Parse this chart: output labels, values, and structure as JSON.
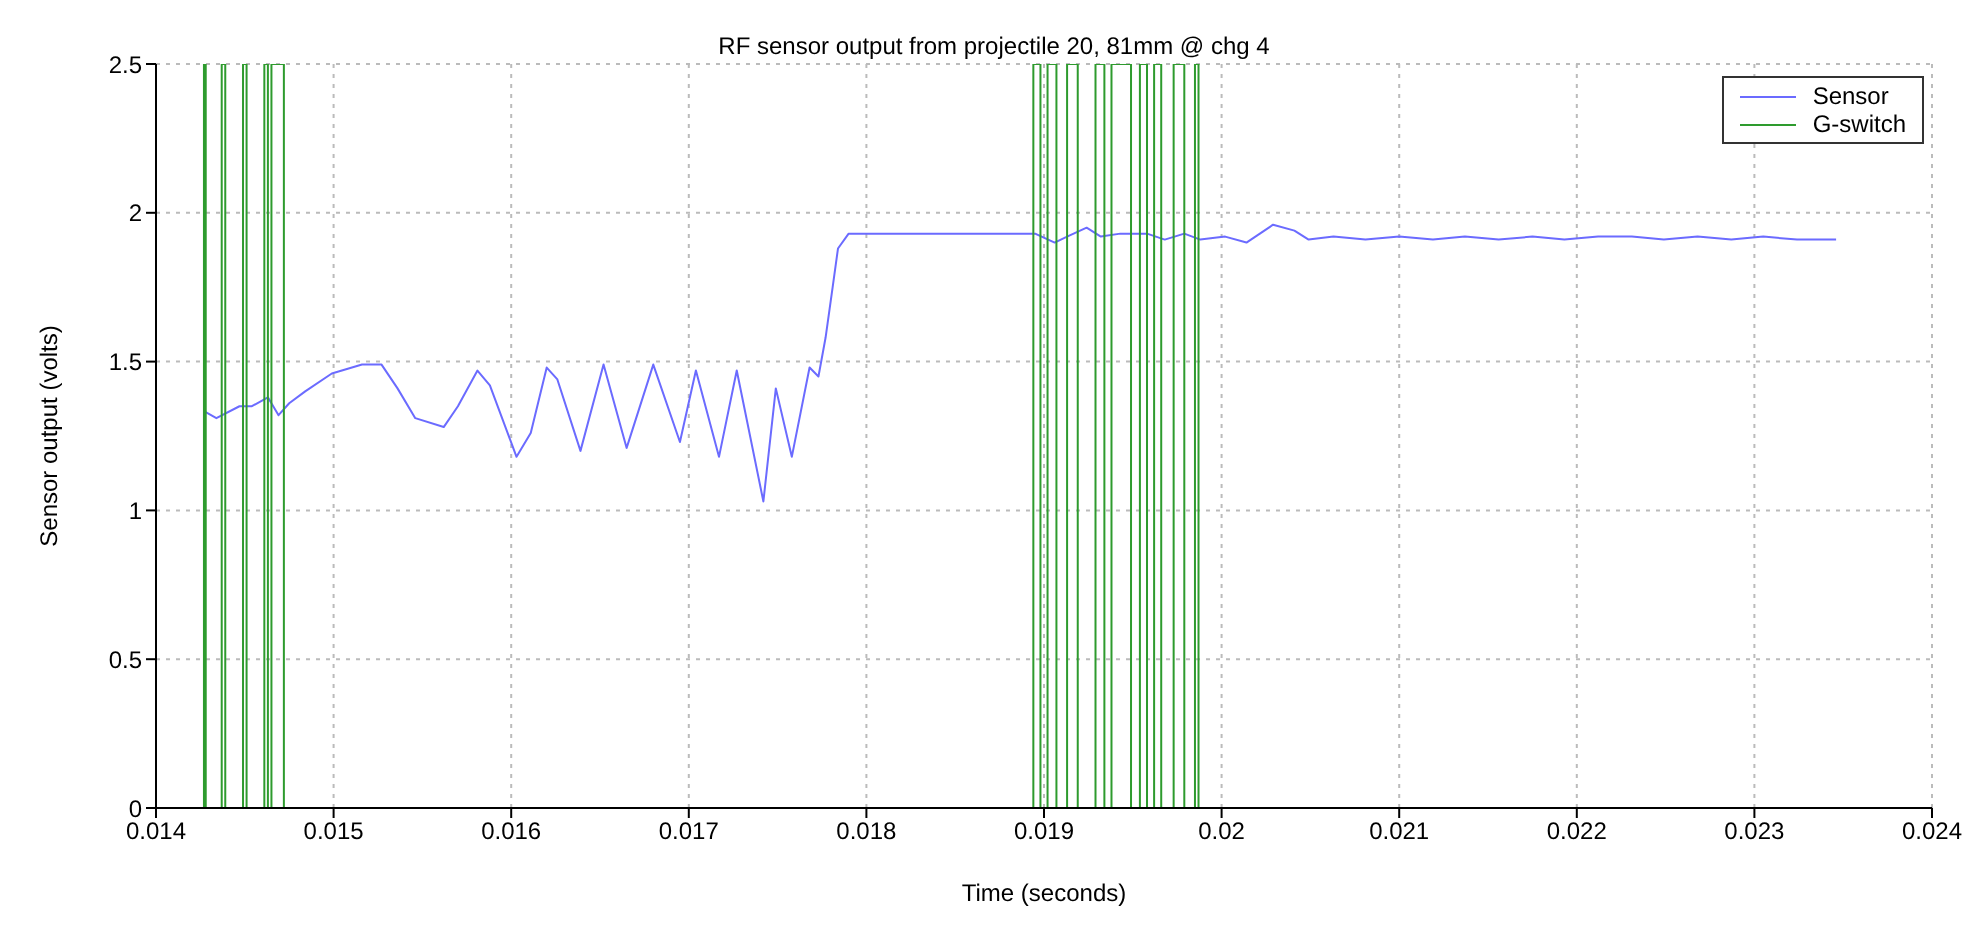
{
  "chart_data": {
    "type": "line",
    "title": "RF sensor output from projectile 20, 81mm @ chg 4",
    "xlabel": "Time (seconds)",
    "ylabel": "Sensor output (volts)",
    "xlim": [
      0.014,
      0.024
    ],
    "xticks": [
      0.014,
      0.015,
      0.016,
      0.017,
      0.018,
      0.019,
      0.02,
      0.021,
      0.022,
      0.023,
      0.024
    ],
    "ylim": [
      0,
      2.5
    ],
    "yticks": [
      0,
      0.5,
      1,
      1.5,
      2,
      2.5
    ],
    "grid": true,
    "legend": "top right",
    "marker": "none",
    "line_style": "solid",
    "series": [
      {
        "name": "Sensor",
        "color": "#6b6bff",
        "x": [
          0.01428,
          0.01434,
          0.01447,
          0.01454,
          0.01463,
          0.01469,
          0.01475,
          0.01484,
          0.01499,
          0.01516,
          0.01527,
          0.01536,
          0.01546,
          0.01562,
          0.0157,
          0.01581,
          0.01588,
          0.01603,
          0.01611,
          0.0162,
          0.01626,
          0.01639,
          0.01652,
          0.01665,
          0.0168,
          0.01695,
          0.01704,
          0.01717,
          0.01727,
          0.01742,
          0.01749,
          0.01758,
          0.01768,
          0.01773,
          0.01777,
          0.01781,
          0.01784,
          0.0179,
          0.01895,
          0.01906,
          0.01913,
          0.01924,
          0.01932,
          0.01943,
          0.01958,
          0.01968,
          0.01979,
          0.01988,
          0.02002,
          0.02014,
          0.02029,
          0.02041,
          0.02049,
          0.02063,
          0.02081,
          0.021,
          0.02119,
          0.02137,
          0.02156,
          0.02175,
          0.02193,
          0.02212,
          0.02231,
          0.02249,
          0.02268,
          0.02287,
          0.02305,
          0.02324,
          0.02346
        ],
        "values": [
          1.33,
          1.31,
          1.35,
          1.35,
          1.38,
          1.32,
          1.36,
          1.4,
          1.46,
          1.49,
          1.49,
          1.41,
          1.31,
          1.28,
          1.35,
          1.47,
          1.42,
          1.18,
          1.26,
          1.48,
          1.44,
          1.2,
          1.49,
          1.21,
          1.49,
          1.23,
          1.47,
          1.18,
          1.47,
          1.03,
          1.41,
          1.18,
          1.48,
          1.45,
          1.58,
          1.75,
          1.88,
          1.93,
          1.93,
          1.9,
          1.92,
          1.95,
          1.92,
          1.93,
          1.93,
          1.91,
          1.93,
          1.91,
          1.92,
          1.9,
          1.96,
          1.94,
          1.91,
          1.92,
          1.91,
          1.92,
          1.91,
          1.92,
          1.91,
          1.92,
          1.91,
          1.92,
          1.92,
          1.91,
          1.92,
          1.91,
          1.92,
          1.91,
          1.91
        ]
      },
      {
        "name": "G-switch",
        "color": "#2e9b2e",
        "x": [
          0.01427,
          0.01427,
          0.01428,
          0.01428,
          0.01437,
          0.01437,
          0.01439,
          0.01439,
          0.01449,
          0.01449,
          0.01451,
          0.01451,
          0.01461,
          0.01461,
          0.01463,
          0.01463,
          0.01465,
          0.01465,
          0.01472,
          0.01472,
          0.01894,
          0.01894,
          0.01898,
          0.01898,
          0.01902,
          0.01902,
          0.01907,
          0.01907,
          0.01913,
          0.01913,
          0.01919,
          0.01919,
          0.01929,
          0.01929,
          0.01934,
          0.01934,
          0.01938,
          0.01938,
          0.01949,
          0.01949,
          0.01954,
          0.01954,
          0.01958,
          0.01958,
          0.01962,
          0.01962,
          0.01966,
          0.01966,
          0.01973,
          0.01973,
          0.01979,
          0.01979,
          0.01985,
          0.01985,
          0.01987,
          0.01987
        ],
        "values": [
          0,
          2.5,
          2.5,
          0,
          0,
          2.5,
          2.5,
          0,
          0,
          2.5,
          2.5,
          0,
          0,
          2.5,
          2.5,
          0,
          0,
          2.5,
          2.5,
          0,
          0,
          2.5,
          2.5,
          0,
          0,
          2.5,
          2.5,
          0,
          0,
          2.5,
          2.5,
          0,
          0,
          2.5,
          2.5,
          0,
          0,
          2.5,
          2.5,
          0,
          0,
          2.5,
          2.5,
          0,
          0,
          2.5,
          2.5,
          0,
          0,
          2.5,
          2.5,
          0,
          0,
          2.5,
          2.5,
          0
        ]
      }
    ]
  }
}
